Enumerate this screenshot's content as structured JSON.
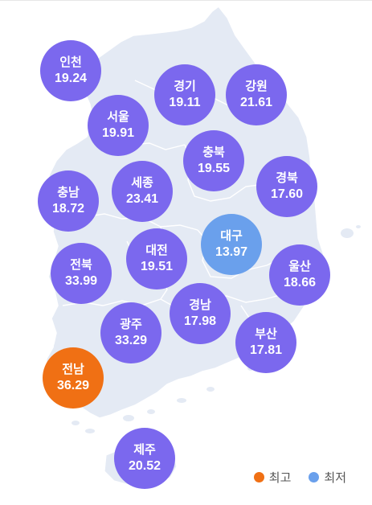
{
  "colors": {
    "default": "#7B68EE",
    "max": "#F07014",
    "min": "#6AA0EC",
    "land": "#E4EAF4",
    "border": "#FFFFFF"
  },
  "regions": [
    {
      "name": "인천",
      "value": "19.24",
      "status": "default"
    },
    {
      "name": "서울",
      "value": "19.91",
      "status": "default"
    },
    {
      "name": "경기",
      "value": "19.11",
      "status": "default"
    },
    {
      "name": "강원",
      "value": "21.61",
      "status": "default"
    },
    {
      "name": "충북",
      "value": "19.55",
      "status": "default"
    },
    {
      "name": "세종",
      "value": "23.41",
      "status": "default"
    },
    {
      "name": "충남",
      "value": "18.72",
      "status": "default"
    },
    {
      "name": "경북",
      "value": "17.60",
      "status": "default"
    },
    {
      "name": "대구",
      "value": "13.97",
      "status": "min"
    },
    {
      "name": "대전",
      "value": "19.51",
      "status": "default"
    },
    {
      "name": "전북",
      "value": "33.99",
      "status": "default"
    },
    {
      "name": "울산",
      "value": "18.66",
      "status": "default"
    },
    {
      "name": "경남",
      "value": "17.98",
      "status": "default"
    },
    {
      "name": "광주",
      "value": "33.29",
      "status": "default"
    },
    {
      "name": "부산",
      "value": "17.81",
      "status": "default"
    },
    {
      "name": "전남",
      "value": "36.29",
      "status": "max"
    },
    {
      "name": "제주",
      "value": "20.52",
      "status": "default"
    }
  ],
  "legend": {
    "max_label": "최고",
    "min_label": "최저"
  }
}
